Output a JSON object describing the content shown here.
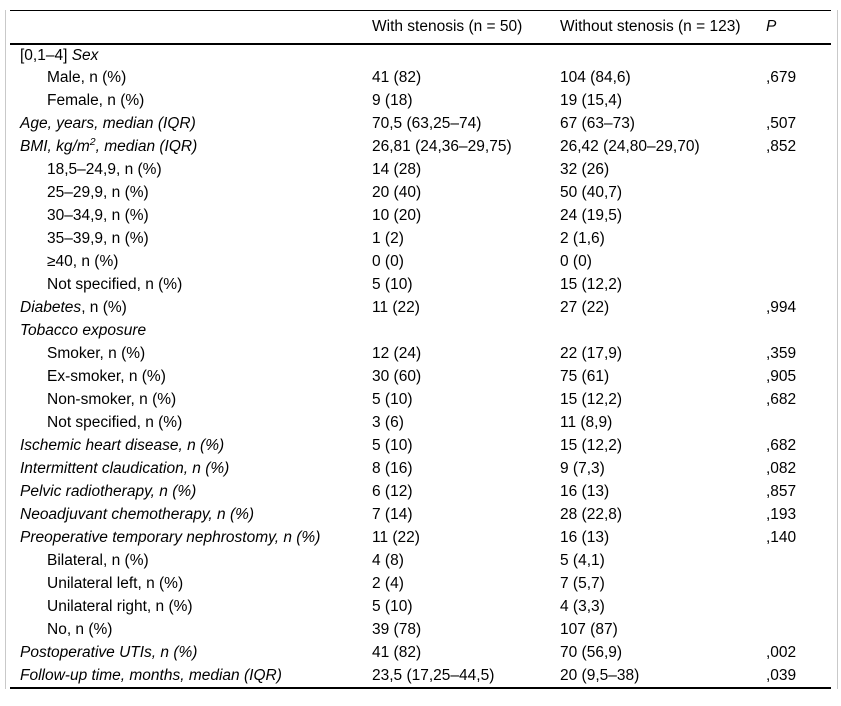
{
  "table": {
    "columns": {
      "with_stenosis": "With stenosis (n = 50)",
      "without_stenosis": "Without stenosis (n = 123)",
      "p": "P"
    },
    "rows": [
      {
        "level": 0,
        "parts": [
          {
            "t": "[0,1–4] ",
            "i": false
          },
          {
            "t": "Sex",
            "i": true
          }
        ],
        "with_stenosis": "",
        "without_stenosis": "",
        "p": ""
      },
      {
        "level": 1,
        "parts": [
          {
            "t": "Male, n (%)",
            "i": false
          }
        ],
        "with_stenosis": "41 (82)",
        "without_stenosis": "104 (84,6)",
        "p": ",679"
      },
      {
        "level": 1,
        "parts": [
          {
            "t": "Female, n (%)",
            "i": false
          }
        ],
        "with_stenosis": "9 (18)",
        "without_stenosis": "19 (15,4)",
        "p": ""
      },
      {
        "level": 0,
        "parts": [
          {
            "t": "Age, years, median (IQR)",
            "i": true
          }
        ],
        "with_stenosis": "70,5 (63,25–74)",
        "without_stenosis": "67 (63–73)",
        "p": ",507"
      },
      {
        "level": 0,
        "parts": [
          {
            "t": "BMI, kg/m",
            "i": true
          },
          {
            "t": "2",
            "i": true,
            "sup": true
          },
          {
            "t": ", median (IQR)",
            "i": true
          }
        ],
        "with_stenosis": "26,81 (24,36–29,75)",
        "without_stenosis": "26,42 (24,80–29,70)",
        "p": ",852"
      },
      {
        "level": 1,
        "parts": [
          {
            "t": "18,5–24,9, n (%)",
            "i": false
          }
        ],
        "with_stenosis": "14 (28)",
        "without_stenosis": "32 (26)",
        "p": ""
      },
      {
        "level": 1,
        "parts": [
          {
            "t": "25–29,9, n (%)",
            "i": false
          }
        ],
        "with_stenosis": "20 (40)",
        "without_stenosis": "50 (40,7)",
        "p": ""
      },
      {
        "level": 1,
        "parts": [
          {
            "t": "30–34,9, n (%)",
            "i": false
          }
        ],
        "with_stenosis": "10 (20)",
        "without_stenosis": "24 (19,5)",
        "p": ""
      },
      {
        "level": 1,
        "parts": [
          {
            "t": "35–39,9, n (%)",
            "i": false
          }
        ],
        "with_stenosis": "1 (2)",
        "without_stenosis": "2 (1,6)",
        "p": ""
      },
      {
        "level": 1,
        "parts": [
          {
            "t": "≥40, n (%)",
            "i": false
          }
        ],
        "with_stenosis": "0 (0)",
        "without_stenosis": "0 (0)",
        "p": ""
      },
      {
        "level": 1,
        "parts": [
          {
            "t": "Not specified, n (%)",
            "i": false
          }
        ],
        "with_stenosis": "5 (10)",
        "without_stenosis": "15 (12,2)",
        "p": ""
      },
      {
        "level": 0,
        "parts": [
          {
            "t": "Diabetes",
            "i": true
          },
          {
            "t": ", n (%)",
            "i": false
          }
        ],
        "with_stenosis": "11 (22)",
        "without_stenosis": "27 (22)",
        "p": ",994"
      },
      {
        "level": 0,
        "parts": [
          {
            "t": "Tobacco exposure",
            "i": true
          }
        ],
        "with_stenosis": "",
        "without_stenosis": "",
        "p": ""
      },
      {
        "level": 1,
        "parts": [
          {
            "t": "Smoker, n (%)",
            "i": false
          }
        ],
        "with_stenosis": "12 (24)",
        "without_stenosis": "22 (17,9)",
        "p": ",359"
      },
      {
        "level": 1,
        "parts": [
          {
            "t": "Ex-smoker, n (%)",
            "i": false
          }
        ],
        "with_stenosis": "30 (60)",
        "without_stenosis": "75 (61)",
        "p": ",905"
      },
      {
        "level": 1,
        "parts": [
          {
            "t": "Non-smoker, n (%)",
            "i": false
          }
        ],
        "with_stenosis": "5 (10)",
        "without_stenosis": "15 (12,2)",
        "p": ",682"
      },
      {
        "level": 1,
        "parts": [
          {
            "t": "Not specified, n (%)",
            "i": false
          }
        ],
        "with_stenosis": "3 (6)",
        "without_stenosis": "11 (8,9)",
        "p": ""
      },
      {
        "level": 0,
        "parts": [
          {
            "t": "Ischemic heart disease, n (%)",
            "i": true
          }
        ],
        "with_stenosis": "5 (10)",
        "without_stenosis": "15 (12,2)",
        "p": ",682"
      },
      {
        "level": 0,
        "parts": [
          {
            "t": "Intermittent claudication, n (%)",
            "i": true
          }
        ],
        "with_stenosis": "8 (16)",
        "without_stenosis": "9 (7,3)",
        "p": ",082"
      },
      {
        "level": 0,
        "parts": [
          {
            "t": "Pelvic radiotherapy, n (%)",
            "i": true
          }
        ],
        "with_stenosis": "6 (12)",
        "without_stenosis": "16 (13)",
        "p": ",857"
      },
      {
        "level": 0,
        "parts": [
          {
            "t": "Neoadjuvant chemotherapy, n (%)",
            "i": true
          }
        ],
        "with_stenosis": "7 (14)",
        "without_stenosis": "28 (22,8)",
        "p": ",193"
      },
      {
        "level": 0,
        "parts": [
          {
            "t": "Preoperative temporary nephrostomy, n (%)",
            "i": true
          }
        ],
        "with_stenosis": "11 (22)",
        "without_stenosis": "16 (13)",
        "p": ",140"
      },
      {
        "level": 1,
        "parts": [
          {
            "t": "Bilateral, n (%)",
            "i": false
          }
        ],
        "with_stenosis": "4 (8)",
        "without_stenosis": "5 (4,1)",
        "p": ""
      },
      {
        "level": 1,
        "parts": [
          {
            "t": "Unilateral left, n (%)",
            "i": false
          }
        ],
        "with_stenosis": "2 (4)",
        "without_stenosis": "7 (5,7)",
        "p": ""
      },
      {
        "level": 1,
        "parts": [
          {
            "t": "Unilateral right, n (%)",
            "i": false
          }
        ],
        "with_stenosis": "5 (10)",
        "without_stenosis": "4 (3,3)",
        "p": ""
      },
      {
        "level": 1,
        "parts": [
          {
            "t": "No, n (%)",
            "i": false
          }
        ],
        "with_stenosis": "39 (78)",
        "without_stenosis": "107 (87)",
        "p": ""
      },
      {
        "level": 0,
        "parts": [
          {
            "t": "Postoperative UTIs, n (%)",
            "i": true
          }
        ],
        "with_stenosis": "41 (82)",
        "without_stenosis": "70 (56,9)",
        "p": ",002"
      },
      {
        "level": 0,
        "parts": [
          {
            "t": "Follow-up time, months, median (IQR)",
            "i": true
          }
        ],
        "with_stenosis": "23,5 (17,25–44,5)",
        "without_stenosis": "20 (9,5–38)",
        "p": ",039"
      }
    ]
  },
  "colors": {
    "text": "#000000",
    "background": "#ffffff",
    "rule": "#000000",
    "side_border": "#c9c9c9"
  }
}
